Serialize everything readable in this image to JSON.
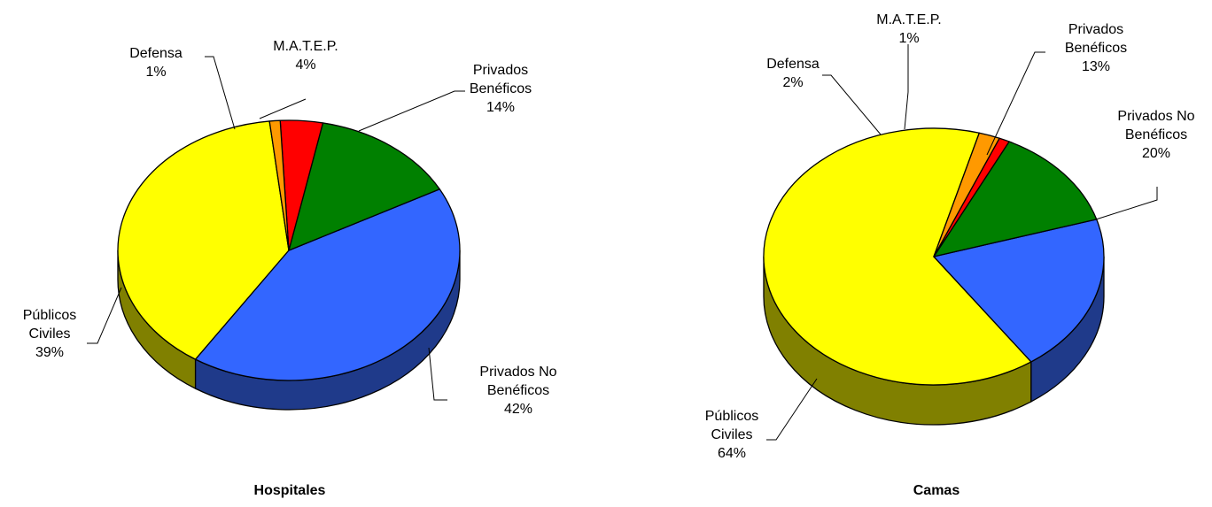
{
  "chart_data": [
    {
      "type": "pie",
      "title": "Hospitales",
      "categories": [
        "Públicos Civiles",
        "Privados No Benéficos",
        "Privados Benéficos",
        "M.A.T.E.P.",
        "Defensa"
      ],
      "values": [
        39,
        42,
        14,
        4,
        1
      ],
      "labels": [
        {
          "lines": [
            "Públicos",
            "Civiles"
          ],
          "pct": "39%"
        },
        {
          "lines": [
            "Privados No",
            "Benéficos"
          ],
          "pct": "42%"
        },
        {
          "lines": [
            "Privados",
            "Benéficos"
          ],
          "pct": "14%"
        },
        {
          "lines": [
            "M.A.T.E.P."
          ],
          "pct": "4%"
        },
        {
          "lines": [
            "Defensa"
          ],
          "pct": "1%"
        }
      ]
    },
    {
      "type": "pie",
      "title": "Camas",
      "categories": [
        "Públicos Civiles",
        "Privados No Benéficos",
        "Privados Benéficos",
        "M.A.T.E.P.",
        "Defensa"
      ],
      "values": [
        64,
        20,
        13,
        1,
        2
      ],
      "labels": [
        {
          "lines": [
            "Públicos",
            "Civiles"
          ],
          "pct": "64%"
        },
        {
          "lines": [
            "Privados No",
            "Benéficos"
          ],
          "pct": "20%"
        },
        {
          "lines": [
            "Privados",
            "Benéficos"
          ],
          "pct": "13%"
        },
        {
          "lines": [
            "M.A.T.E.P."
          ],
          "pct": "1%"
        },
        {
          "lines": [
            "Defensa"
          ],
          "pct": "2%"
        }
      ]
    }
  ],
  "colors": {
    "publicos_civiles": "#ffff00",
    "privados_no_beneficos": "#3366ff",
    "privados_beneficos": "#008000",
    "matep": "#ff0000",
    "defensa": "#ff9900"
  }
}
